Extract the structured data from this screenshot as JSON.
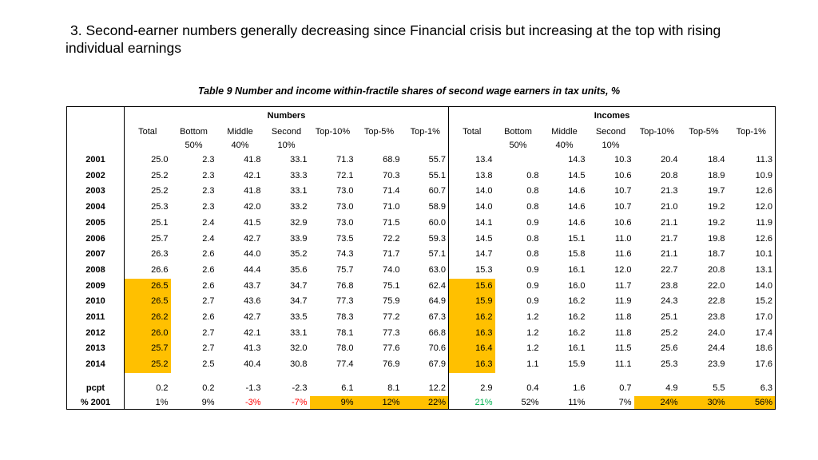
{
  "slide": {
    "title_number": "3.",
    "title_text": "Second-earner numbers generally decreasing since Financial crisis but increasing at the top with rising individual earnings"
  },
  "table": {
    "caption": "Table 9 Number and income within-fractile shares of second wage earners in tax units, %",
    "group_numbers": "Numbers",
    "group_incomes": "Incomes",
    "header_top": [
      "Total",
      "Bottom",
      "Middle",
      "Second",
      "Top-10%",
      "Top-5%",
      "Top-1%",
      "Total",
      "Bottom",
      "Middle",
      "Second",
      "Top-10%",
      "Top-5%",
      "Top-1%"
    ],
    "header_bottom": [
      "",
      "50%",
      "40%",
      "10%",
      "",
      "",
      "",
      "",
      "50%",
      "40%",
      "10%",
      "",
      "",
      ""
    ],
    "rows": [
      {
        "year": "2001",
        "values": [
          "25.0",
          "2.3",
          "41.8",
          "33.1",
          "71.3",
          "68.9",
          "55.7",
          "13.4",
          "",
          "14.3",
          "10.3",
          "20.4",
          "18.4",
          "11.3"
        ]
      },
      {
        "year": "2002",
        "values": [
          "25.2",
          "2.3",
          "42.1",
          "33.3",
          "72.1",
          "70.3",
          "55.1",
          "13.8",
          "0.8",
          "14.5",
          "10.6",
          "20.8",
          "18.9",
          "10.9"
        ]
      },
      {
        "year": "2003",
        "values": [
          "25.2",
          "2.3",
          "41.8",
          "33.1",
          "73.0",
          "71.4",
          "60.7",
          "14.0",
          "0.8",
          "14.6",
          "10.7",
          "21.3",
          "19.7",
          "12.6"
        ]
      },
      {
        "year": "2004",
        "values": [
          "25.3",
          "2.3",
          "42.0",
          "33.2",
          "73.0",
          "71.0",
          "58.9",
          "14.0",
          "0.8",
          "14.6",
          "10.7",
          "21.0",
          "19.2",
          "12.0"
        ]
      },
      {
        "year": "2005",
        "values": [
          "25.1",
          "2.4",
          "41.5",
          "32.9",
          "73.0",
          "71.5",
          "60.0",
          "14.1",
          "0.9",
          "14.6",
          "10.6",
          "21.1",
          "19.2",
          "11.9"
        ]
      },
      {
        "year": "2006",
        "values": [
          "25.7",
          "2.4",
          "42.7",
          "33.9",
          "73.5",
          "72.2",
          "59.3",
          "14.5",
          "0.8",
          "15.1",
          "11.0",
          "21.7",
          "19.8",
          "12.6"
        ]
      },
      {
        "year": "2007",
        "values": [
          "26.3",
          "2.6",
          "44.0",
          "35.2",
          "74.3",
          "71.7",
          "57.1",
          "14.7",
          "0.8",
          "15.8",
          "11.6",
          "21.1",
          "18.7",
          "10.1"
        ]
      },
      {
        "year": "2008",
        "values": [
          "26.6",
          "2.6",
          "44.4",
          "35.6",
          "75.7",
          "74.0",
          "63.0",
          "15.3",
          "0.9",
          "16.1",
          "12.0",
          "22.7",
          "20.8",
          "13.1"
        ]
      },
      {
        "year": "2009",
        "values": [
          "26.5",
          "2.6",
          "43.7",
          "34.7",
          "76.8",
          "75.1",
          "62.4",
          "15.6",
          "0.9",
          "16.0",
          "11.7",
          "23.8",
          "22.0",
          "14.0"
        ]
      },
      {
        "year": "2010",
        "values": [
          "26.5",
          "2.7",
          "43.6",
          "34.7",
          "77.3",
          "75.9",
          "64.9",
          "15.9",
          "0.9",
          "16.2",
          "11.9",
          "24.3",
          "22.8",
          "15.2"
        ]
      },
      {
        "year": "2011",
        "values": [
          "26.2",
          "2.6",
          "42.7",
          "33.5",
          "78.3",
          "77.2",
          "67.3",
          "16.2",
          "1.2",
          "16.2",
          "11.8",
          "25.1",
          "23.8",
          "17.0"
        ]
      },
      {
        "year": "2012",
        "values": [
          "26.0",
          "2.7",
          "42.1",
          "33.1",
          "78.1",
          "77.3",
          "66.8",
          "16.3",
          "1.2",
          "16.2",
          "11.8",
          "25.2",
          "24.0",
          "17.4"
        ]
      },
      {
        "year": "2013",
        "values": [
          "25.7",
          "2.7",
          "41.3",
          "32.0",
          "78.0",
          "77.6",
          "70.6",
          "16.4",
          "1.2",
          "16.1",
          "11.5",
          "25.6",
          "24.4",
          "18.6"
        ]
      },
      {
        "year": "2014",
        "values": [
          "25.2",
          "2.5",
          "40.4",
          "30.8",
          "77.4",
          "76.9",
          "67.9",
          "16.3",
          "1.1",
          "15.9",
          "11.1",
          "25.3",
          "23.9",
          "17.6"
        ]
      }
    ],
    "highlight_years": [
      "2009",
      "2010",
      "2011",
      "2012",
      "2013",
      "2014"
    ],
    "pcpt_label": "pcpt",
    "pcpt_values": [
      "0.2",
      "0.2",
      "-1.3",
      "-2.3",
      "6.1",
      "8.1",
      "12.2",
      "2.9",
      "0.4",
      "1.6",
      "0.7",
      "4.9",
      "5.5",
      "6.3"
    ],
    "pct_label": "% 2001",
    "pct_values": [
      "1%",
      "9%",
      "-3%",
      "-7%",
      "9%",
      "12%",
      "22%",
      "21%",
      "52%",
      "11%",
      "7%",
      "24%",
      "30%",
      "56%"
    ],
    "colors": {
      "highlight": "#ffc000",
      "negative": "#ff0000",
      "positive": "#00b050"
    }
  }
}
